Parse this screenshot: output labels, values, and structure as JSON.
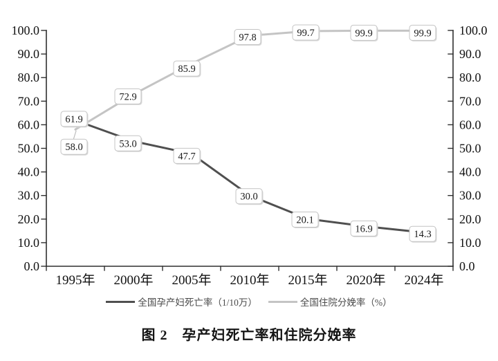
{
  "figure": {
    "background": "#ffffff",
    "axis_color": "#2f2f2f",
    "tick_label_color": "#111111",
    "point_label": {
      "text_color": "#1a1a1a",
      "box_fill": "#ffffff",
      "box_border": "#c4c4c4",
      "shadow_color": "#d9d9d9",
      "leader_color": "#bdbdbd"
    }
  },
  "chart_data": {
    "type": "line",
    "title": "图 2　孕产妇死亡率和住院分娩率",
    "categories": [
      "1995年",
      "2000年",
      "2005年",
      "2010年",
      "2015年",
      "2020年",
      "2024年"
    ],
    "series": [
      {
        "name": "全国孕产妇死亡率（1/10万）",
        "color": "#4f4f4f",
        "values": [
          61.9,
          53.0,
          47.7,
          30.0,
          20.1,
          16.9,
          14.3
        ],
        "point_labels": [
          "61.9",
          "53.0",
          "47.7",
          "30.0",
          "20.1",
          "16.9",
          "14.3"
        ],
        "label_offsets": [
          [
            -2,
            -2
          ],
          [
            -8,
            3
          ],
          [
            -7,
            3
          ],
          [
            -1,
            1
          ],
          [
            -4,
            1
          ],
          [
            -3,
            3
          ],
          [
            -2,
            2
          ]
        ]
      },
      {
        "name": "全国住院分娩率（%）",
        "color": "#c4c4c4",
        "values": [
          58.0,
          72.9,
          85.9,
          97.8,
          99.7,
          99.9,
          99.9
        ],
        "point_labels": [
          "58.0",
          "72.9",
          "85.9",
          "97.8",
          "99.7",
          "99.9",
          "99.9"
        ],
        "label_offsets": [
          [
            -2,
            25,
            true
          ],
          [
            -8,
            3
          ],
          [
            -7,
            7
          ],
          [
            -3,
            2
          ],
          [
            -3,
            2
          ],
          [
            -3,
            3
          ],
          [
            -2,
            3
          ]
        ]
      }
    ],
    "y_axis": {
      "min": 0,
      "max": 100,
      "step": 10,
      "tick_labels": [
        "0.0",
        "10.0",
        "20.0",
        "30.0",
        "40.0",
        "50.0",
        "60.0",
        "70.0",
        "80.0",
        "90.0",
        "100.0"
      ],
      "sides": [
        "left",
        "right"
      ]
    },
    "grid": "off",
    "legend_position": "bottom"
  }
}
